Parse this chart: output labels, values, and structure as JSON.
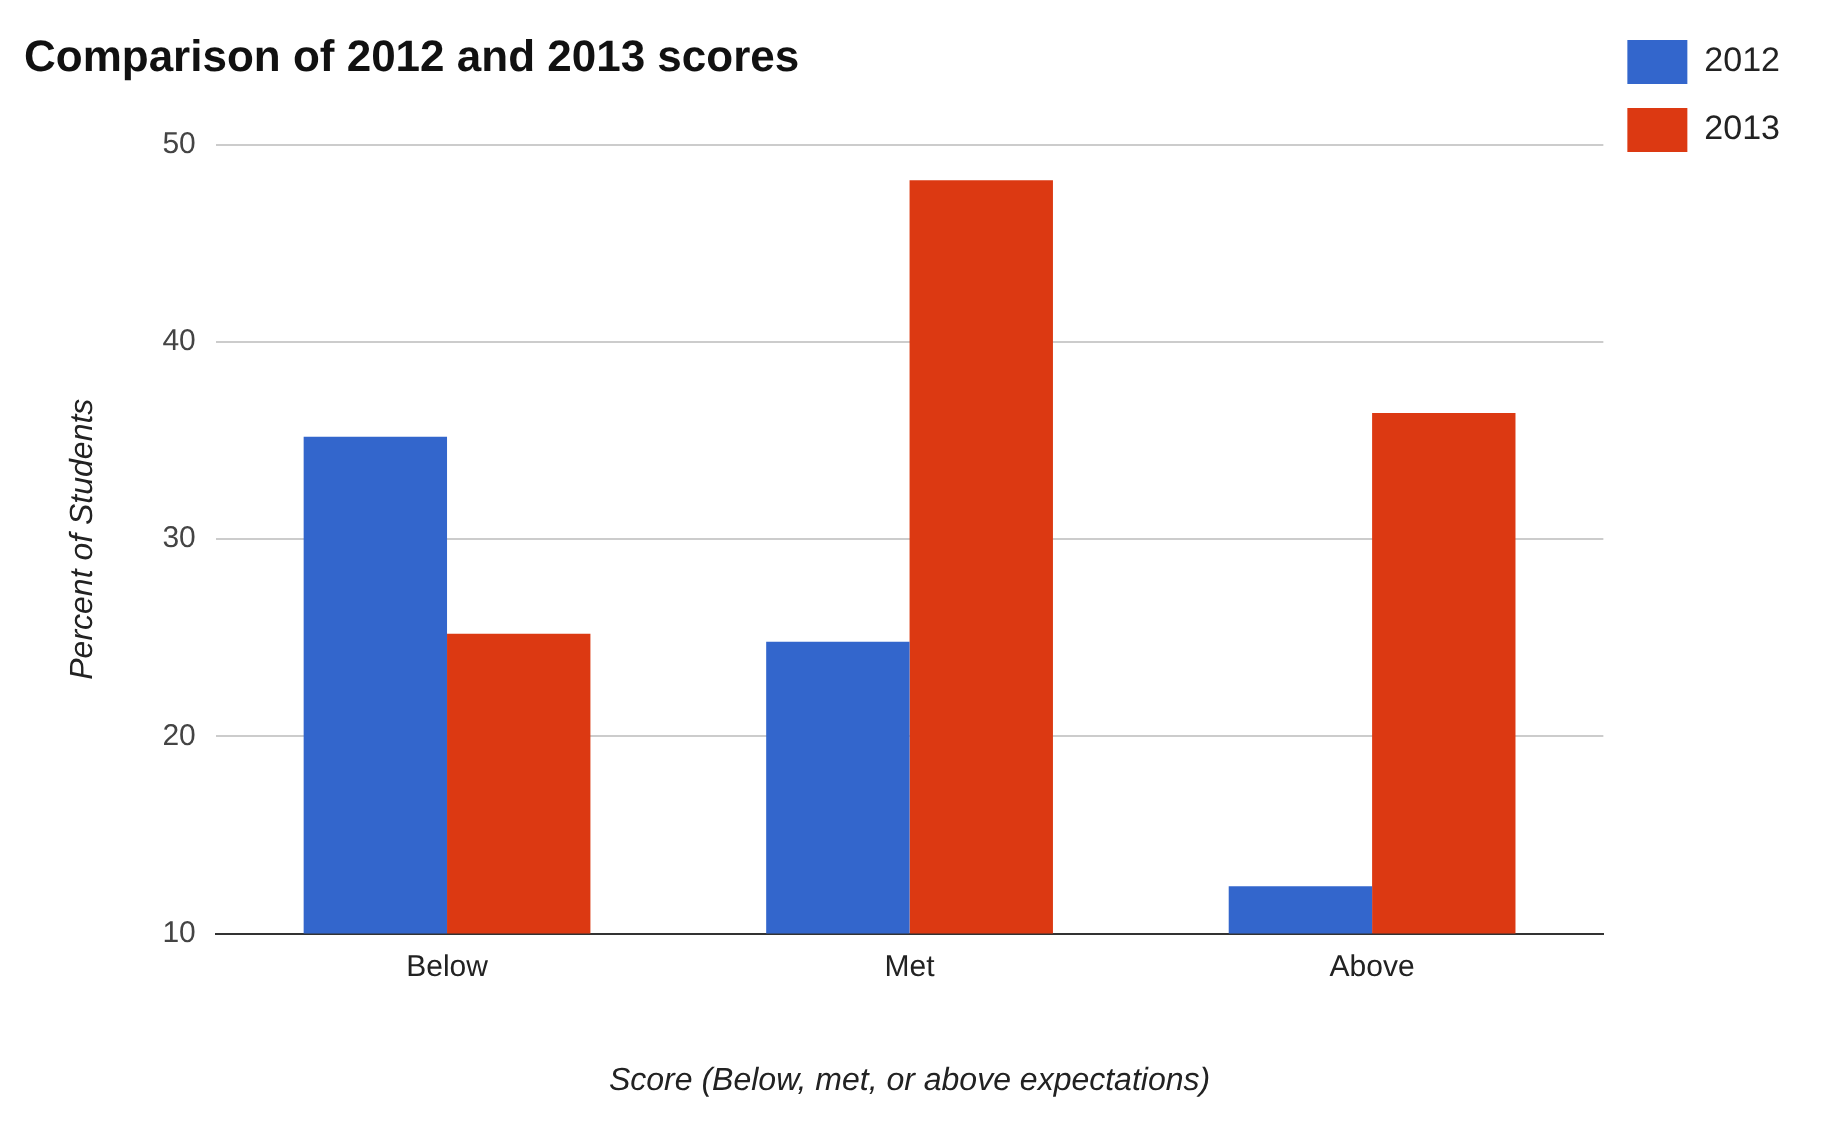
{
  "chart_data": {
    "type": "bar",
    "title": "Comparison of 2012 and 2013 scores",
    "xlabel": "Score (Below, met, or above expectations)",
    "ylabel": "Percent of Students",
    "categories": [
      "Below",
      "Met",
      "Above"
    ],
    "series": [
      {
        "name": "2012",
        "color": "#3366cc",
        "values": [
          35.2,
          24.8,
          12.4
        ]
      },
      {
        "name": "2013",
        "color": "#dc3912",
        "values": [
          25.2,
          48.2,
          36.4
        ]
      }
    ],
    "ylim": [
      10,
      50
    ],
    "yticks": [
      10,
      20,
      30,
      40,
      50
    ],
    "grid": "y",
    "legend": "top right"
  }
}
